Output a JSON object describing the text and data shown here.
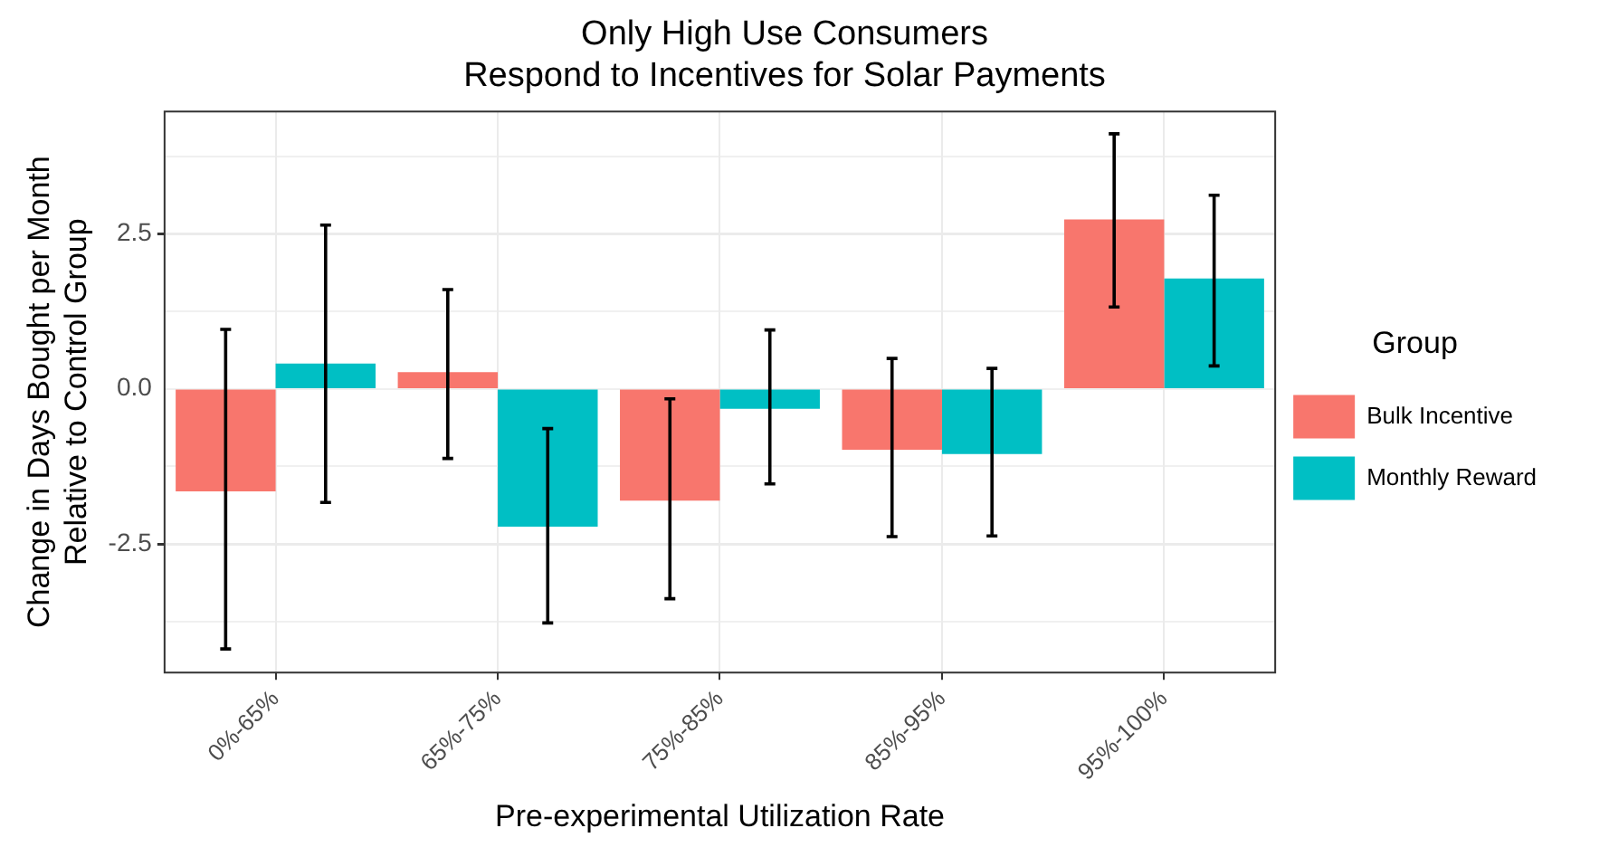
{
  "chart_data": {
    "type": "bar",
    "title": "Only High Use Consumers\nRespond to Incentives for Solar Payments",
    "xlabel": "Pre-experimental Utilization Rate",
    "ylabel": "Change in Days Bought per Month\nRelative to Control Group",
    "legend_title": "Group",
    "legend": "right",
    "grid": true,
    "categories": [
      "0%-65%",
      "65%-75%",
      "75%-85%",
      "85%-95%",
      "95%-100%"
    ],
    "series": [
      {
        "name": "Bulk Incentive",
        "color": "#f8766d",
        "values": [
          -1.65,
          0.27,
          -1.8,
          -0.98,
          2.73
        ],
        "errors": [
          [
            -4.19,
            0.96
          ],
          [
            -1.12,
            1.6
          ],
          [
            -3.38,
            -0.16
          ],
          [
            -2.38,
            0.49
          ],
          [
            1.32,
            4.11
          ]
        ]
      },
      {
        "name": "Monthly Reward",
        "color": "#00bfc4",
        "values": [
          0.41,
          -2.22,
          -0.32,
          -1.05,
          1.78
        ],
        "errors": [
          [
            -1.83,
            2.64
          ],
          [
            -3.77,
            -0.64
          ],
          [
            -1.53,
            0.95
          ],
          [
            -2.37,
            0.33
          ],
          [
            0.37,
            3.12
          ]
        ]
      }
    ],
    "ylim": [
      -4.57,
      4.47
    ],
    "yticks": [
      {
        "value": -3.75,
        "label": null
      },
      -2.5,
      {
        "value": -1.25,
        "label": null
      },
      {
        "value": 0,
        "label": "0.0"
      },
      {
        "value": 1.25,
        "label": null
      },
      2.5,
      {
        "value": 3.75,
        "label": null
      }
    ]
  }
}
